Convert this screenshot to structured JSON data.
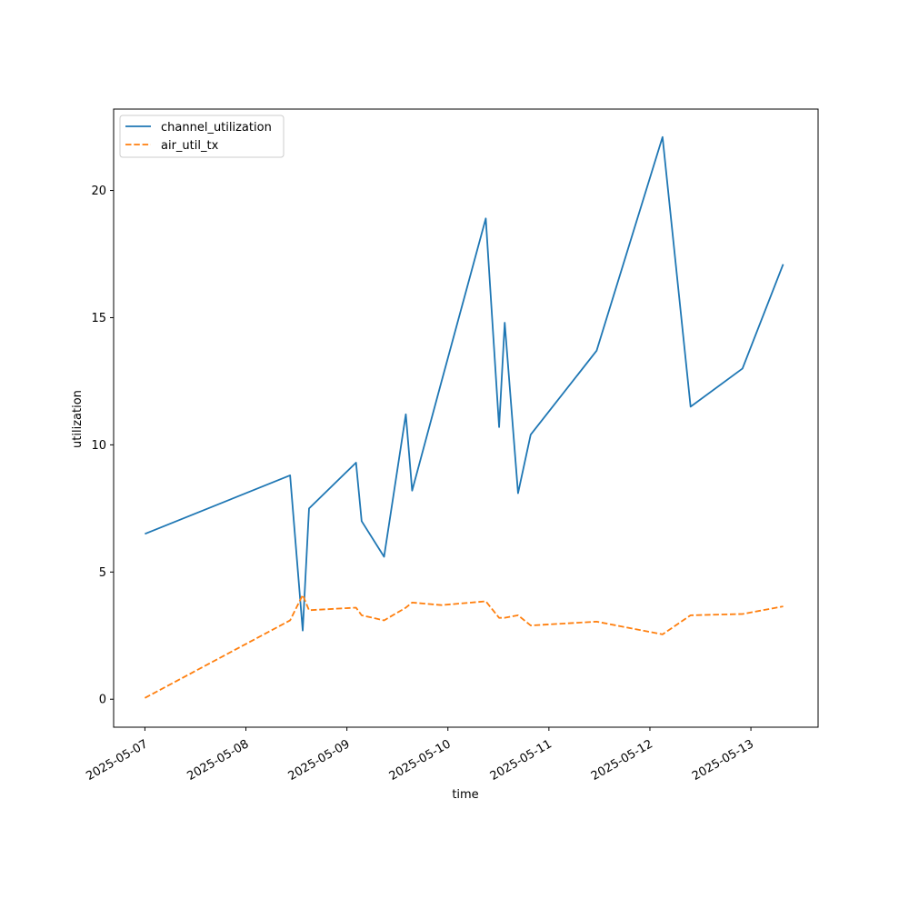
{
  "chart_data": {
    "type": "line",
    "title": "",
    "xlabel": "time",
    "ylabel": "utilization",
    "x_tick_labels": [
      "2025-05-07",
      "2025-05-08",
      "2025-05-09",
      "2025-05-10",
      "2025-05-11",
      "2025-05-12",
      "2025-05-13"
    ],
    "y_ticks": [
      0,
      5,
      10,
      15,
      20
    ],
    "xlim": [
      "2025-05-06T16:34",
      "2025-05-13T15:58"
    ],
    "ylim": [
      -1.1,
      23.2
    ],
    "grid": false,
    "legend_position": "upper-left",
    "series": [
      {
        "name": "channel_utilization",
        "color": "#1f77b4",
        "style": "solid",
        "points": [
          [
            "2025-05-07T00:00",
            6.5
          ],
          [
            "2025-05-08T10:30",
            8.8
          ],
          [
            "2025-05-08T13:30",
            2.7
          ],
          [
            "2025-05-08T15:00",
            7.5
          ],
          [
            "2025-05-09T02:10",
            9.3
          ],
          [
            "2025-05-09T03:30",
            7.0
          ],
          [
            "2025-05-09T08:50",
            5.6
          ],
          [
            "2025-05-09T14:00",
            11.2
          ],
          [
            "2025-05-09T15:30",
            8.2
          ],
          [
            "2025-05-09T22:30",
            12.5
          ],
          [
            "2025-05-10T09:00",
            18.9
          ],
          [
            "2025-05-10T12:10",
            10.7
          ],
          [
            "2025-05-10T13:30",
            14.8
          ],
          [
            "2025-05-10T16:40",
            8.1
          ],
          [
            "2025-05-10T19:40",
            10.4
          ],
          [
            "2025-05-11T11:20",
            13.7
          ],
          [
            "2025-05-12T03:00",
            22.1
          ],
          [
            "2025-05-12T09:40",
            11.5
          ],
          [
            "2025-05-12T22:00",
            13.0
          ],
          [
            "2025-05-13T07:40",
            17.1
          ]
        ]
      },
      {
        "name": "air_util_tx",
        "color": "#ff7f0e",
        "style": "dashed",
        "points": [
          [
            "2025-05-07T00:00",
            0.05
          ],
          [
            "2025-05-08T10:30",
            3.1
          ],
          [
            "2025-05-08T13:30",
            4.1
          ],
          [
            "2025-05-08T15:00",
            3.5
          ],
          [
            "2025-05-09T02:10",
            3.6
          ],
          [
            "2025-05-09T03:30",
            3.3
          ],
          [
            "2025-05-09T08:50",
            3.1
          ],
          [
            "2025-05-09T14:00",
            3.6
          ],
          [
            "2025-05-09T15:30",
            3.8
          ],
          [
            "2025-05-09T22:30",
            3.7
          ],
          [
            "2025-05-10T09:00",
            3.85
          ],
          [
            "2025-05-10T12:10",
            3.2
          ],
          [
            "2025-05-10T13:30",
            3.2
          ],
          [
            "2025-05-10T16:40",
            3.3
          ],
          [
            "2025-05-10T19:40",
            2.9
          ],
          [
            "2025-05-11T11:20",
            3.05
          ],
          [
            "2025-05-12T03:00",
            2.55
          ],
          [
            "2025-05-12T09:40",
            3.3
          ],
          [
            "2025-05-12T22:00",
            3.35
          ],
          [
            "2025-05-13T07:40",
            3.65
          ]
        ]
      }
    ]
  }
}
